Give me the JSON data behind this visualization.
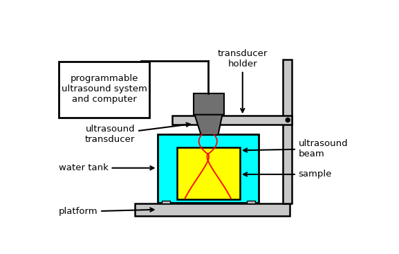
{
  "bg_color": "#ffffff",
  "fig_w": 5.77,
  "fig_h": 3.67,
  "dpi": 100,
  "labels": {
    "transducer_holder": "transducer\nholder",
    "programmable": "programmable\nultrasound system\nand computer",
    "ultrasound_transducer": "ultrasound\ntransducer",
    "water_tank": "water tank",
    "ultrasound_beam": "ultrasound\nbeam",
    "sample": "sample",
    "platform": "platform"
  },
  "colors": {
    "cyan": "#00ffff",
    "yellow": "#ffff00",
    "gray_dark": "#707070",
    "gray_light": "#c8c8c8",
    "black": "#000000",
    "red": "#ff0000",
    "white": "#ffffff"
  }
}
